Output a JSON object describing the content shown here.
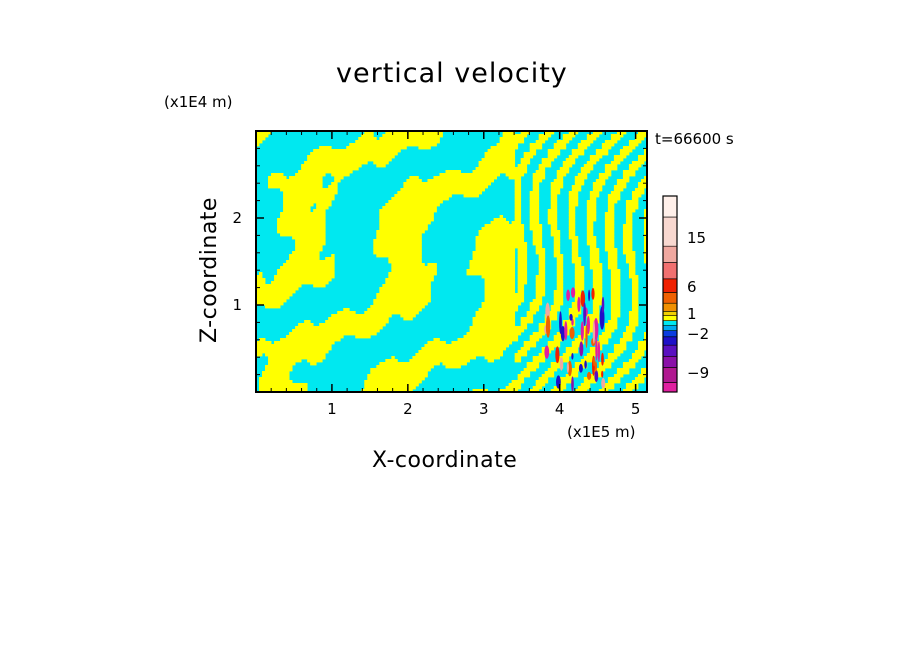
{
  "chart_data": {
    "type": "heatmap",
    "title": "vertical velocity",
    "xlabel": "X-coordinate",
    "ylabel": "Z-coordinate",
    "x_unit_label": "(x1E5 m)",
    "z_unit_label": "(x1E4 m)",
    "time_label": "t=66600 s",
    "xlim": [
      0,
      5.15
    ],
    "ylim": [
      0,
      3.0
    ],
    "x_ticks": [
      1,
      2,
      3,
      4,
      5
    ],
    "y_ticks": [
      1,
      2
    ],
    "grid": false,
    "colorbar": {
      "tick_labels": [
        {
          "label": "15",
          "value": 15
        },
        {
          "label": "6",
          "value": 6
        },
        {
          "label": "1",
          "value": 1
        },
        {
          "label": "−2",
          "value": -2
        },
        {
          "label": "−9",
          "value": -9
        }
      ],
      "levels": [
        {
          "value": -11,
          "color": "#e020a0"
        },
        {
          "value": -9,
          "color": "#b01890"
        },
        {
          "value": -7,
          "color": "#8a10a8"
        },
        {
          "value": -5,
          "color": "#5a10c0"
        },
        {
          "value": -3,
          "color": "#1e10c8"
        },
        {
          "value": -2,
          "color": "#0a3ce0"
        },
        {
          "value": -1,
          "color": "#00aaf0"
        },
        {
          "value": -0.5,
          "color": "#00e8f0"
        },
        {
          "value": 0.5,
          "color": "#ffff00"
        },
        {
          "value": 1,
          "color": "#f0d000"
        },
        {
          "value": 2,
          "color": "#f09000"
        },
        {
          "value": 4,
          "color": "#f06000"
        },
        {
          "value": 6,
          "color": "#f02000"
        },
        {
          "value": 9,
          "color": "#f07070"
        },
        {
          "value": 12,
          "color": "#f0a8a0"
        },
        {
          "value": 15,
          "color": "#f8d8d0"
        },
        {
          "value": 20,
          "color": "#fff0ea"
        }
      ]
    },
    "field_colors": {
      "positive": "#ffff00",
      "negative": "#00e8f0"
    }
  }
}
